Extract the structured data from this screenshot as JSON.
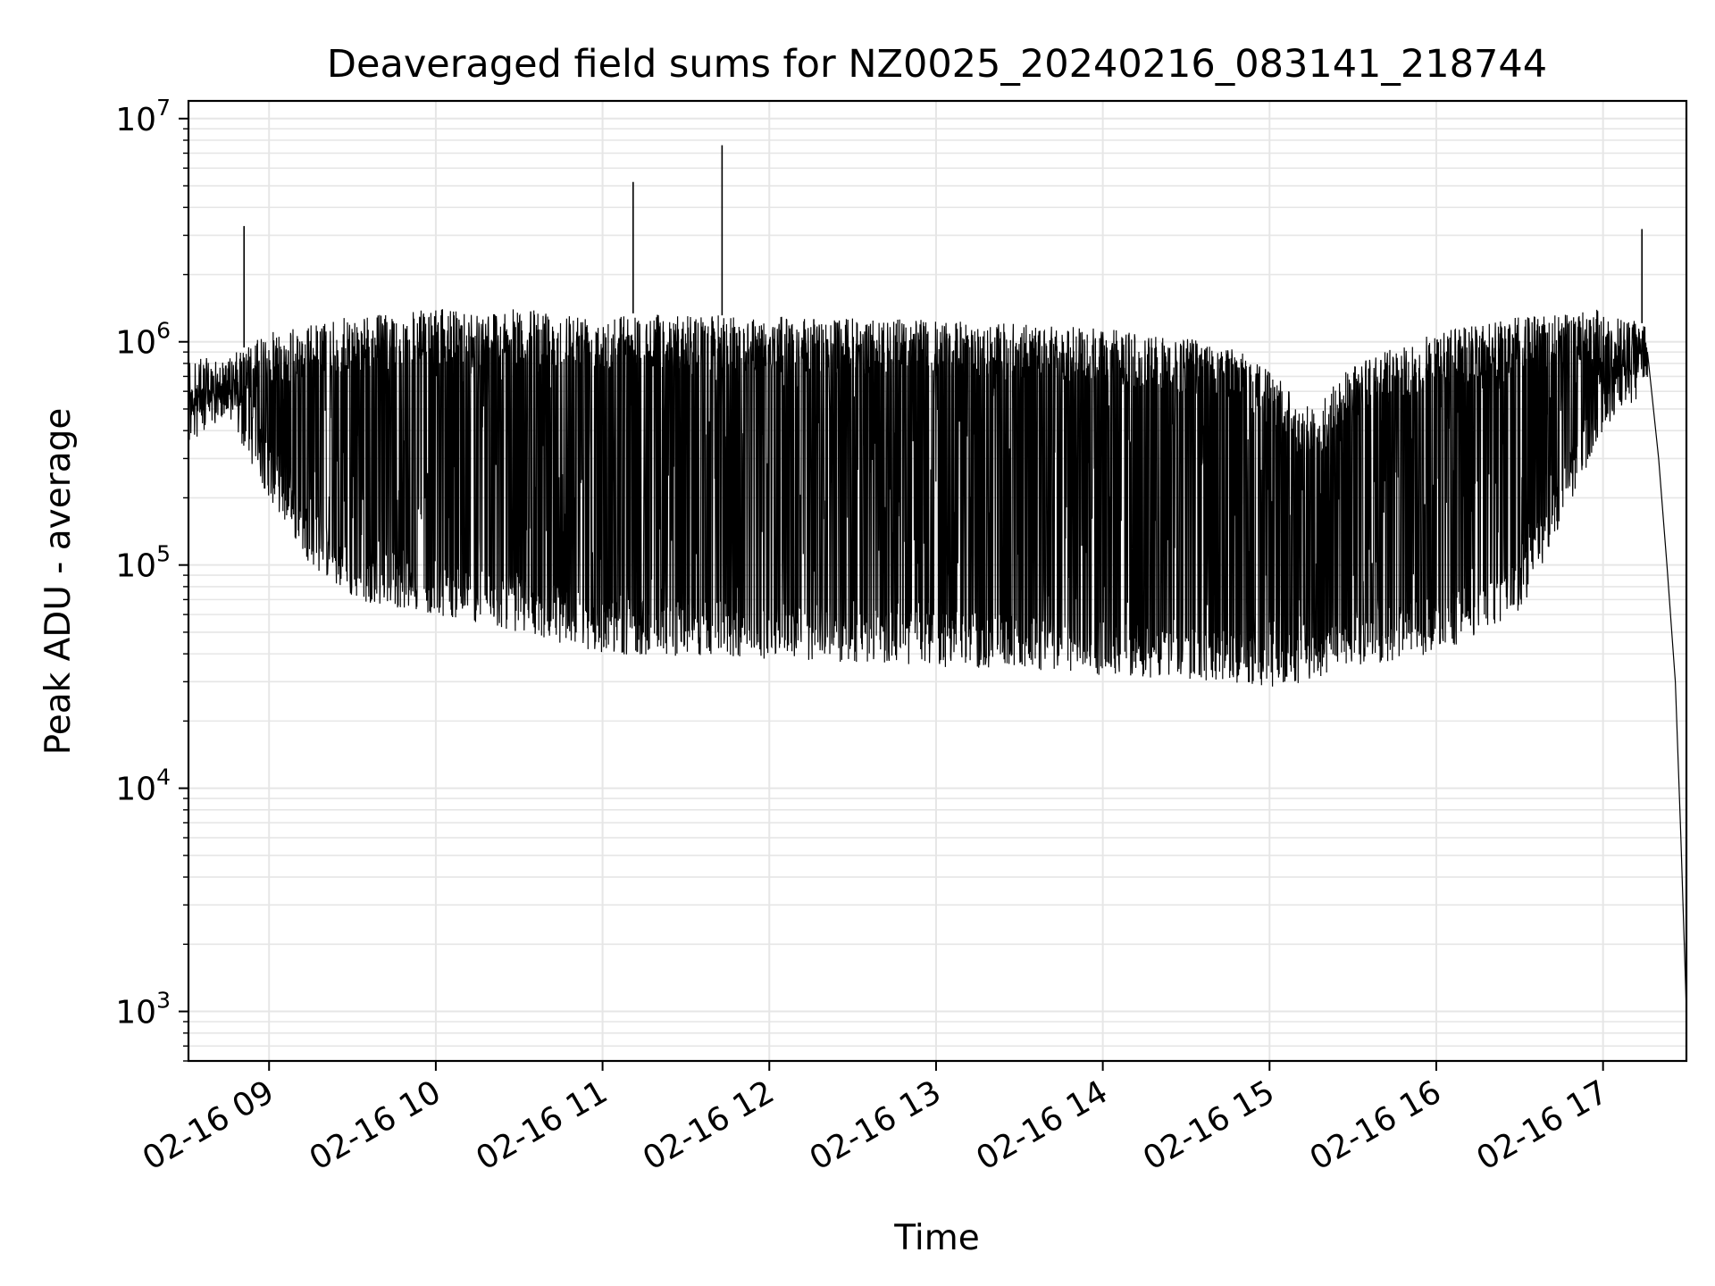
{
  "chart_data": {
    "type": "line",
    "title": "Deaveraged field sums for NZ0025_20240216_083141_218744",
    "xlabel": "Time",
    "ylabel": "Peak ADU - average",
    "yscale": "log",
    "ylim": [
      600,
      12000000
    ],
    "xlim": [
      "02-16 08:31",
      "02-16 17:30"
    ],
    "grid": true,
    "line_color": "#000000",
    "grid_color": "#e6e6e6",
    "x_ticks": [
      "02-16 09",
      "02-16 10",
      "02-16 11",
      "02-16 12",
      "02-16 13",
      "02-16 14",
      "02-16 15",
      "02-16 16",
      "02-16 17"
    ],
    "y_ticks": [
      {
        "value": 1000,
        "base": "10",
        "exp": "3"
      },
      {
        "value": 10000,
        "base": "10",
        "exp": "4"
      },
      {
        "value": 100000,
        "base": "10",
        "exp": "5"
      },
      {
        "value": 1000000,
        "base": "10",
        "exp": "6"
      },
      {
        "value": 10000000,
        "base": "10",
        "exp": "7"
      }
    ],
    "series": [
      {
        "envelope": [
          {
            "t": "08:31",
            "low": 500000,
            "high": 600000
          },
          {
            "t": "08:45",
            "low": 450000,
            "high": 850000
          },
          {
            "t": "09:00",
            "low": 200000,
            "high": 1100000
          },
          {
            "t": "09:15",
            "low": 100000,
            "high": 1200000
          },
          {
            "t": "09:30",
            "low": 70000,
            "high": 1300000
          },
          {
            "t": "10:00",
            "low": 60000,
            "high": 1400000
          },
          {
            "t": "10:30",
            "low": 50000,
            "high": 1400000
          },
          {
            "t": "11:00",
            "low": 40000,
            "high": 1350000
          },
          {
            "t": "12:00",
            "low": 38000,
            "high": 1300000
          },
          {
            "t": "13:00",
            "low": 35000,
            "high": 1250000
          },
          {
            "t": "14:00",
            "low": 32000,
            "high": 1150000
          },
          {
            "t": "14:45",
            "low": 30000,
            "high": 1000000
          },
          {
            "t": "15:00",
            "low": 28000,
            "high": 750000
          },
          {
            "t": "15:15",
            "low": 30000,
            "high": 500000
          },
          {
            "t": "15:30",
            "low": 35000,
            "high": 800000
          },
          {
            "t": "16:00",
            "low": 40000,
            "high": 1100000
          },
          {
            "t": "16:30",
            "low": 60000,
            "high": 1300000
          },
          {
            "t": "17:00",
            "low": 400000,
            "high": 1400000
          },
          {
            "t": "17:15",
            "low": 600000,
            "high": 1200000
          }
        ],
        "spikes": [
          {
            "t": "08:51",
            "value": 3300000
          },
          {
            "t": "11:11",
            "value": 5200000
          },
          {
            "t": "11:43",
            "value": 7600000
          },
          {
            "t": "17:14",
            "value": 3200000
          }
        ],
        "tail": [
          {
            "t": "17:16",
            "value": 900000
          },
          {
            "t": "17:20",
            "value": 300000
          },
          {
            "t": "17:23",
            "value": 100000
          },
          {
            "t": "17:26",
            "value": 30000
          },
          {
            "t": "17:28",
            "value": 6000
          },
          {
            "t": "17:30",
            "value": 1000
          }
        ]
      }
    ]
  }
}
